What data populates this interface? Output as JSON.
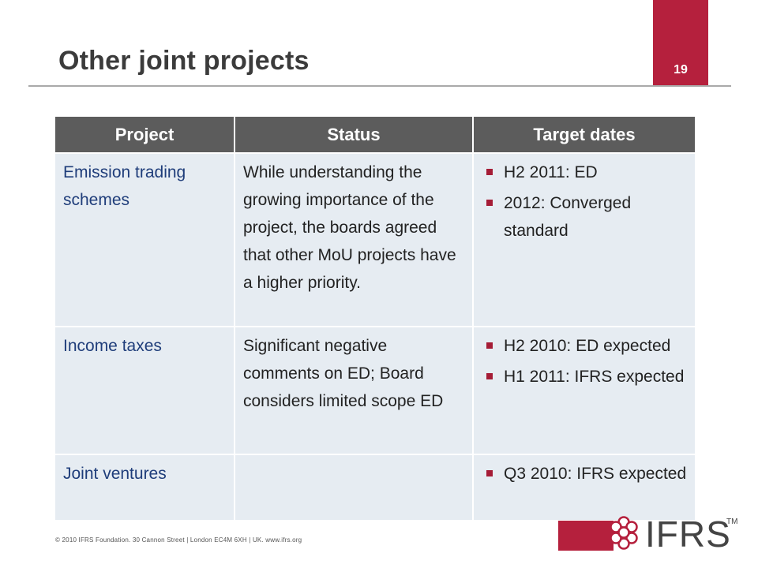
{
  "slide": {
    "title": "Other joint projects",
    "page_number": "19"
  },
  "table": {
    "headers": [
      "Project",
      "Status",
      "Target dates"
    ],
    "rows": [
      {
        "project": "Emission trading schemes",
        "status": "While understanding the growing importance of the project, the boards agreed that other MoU projects have a higher priority.",
        "dates": [
          "H2 2011: ED",
          "2012: Converged standard"
        ]
      },
      {
        "project": "Income taxes",
        "status": "Significant negative comments on ED; Board considers limited scope ED",
        "dates": [
          "H2 2010: ED expected",
          "H1 2011: IFRS expected"
        ]
      },
      {
        "project": "Joint ventures",
        "status": "",
        "dates": [
          "Q3 2010: IFRS expected"
        ]
      }
    ]
  },
  "footer": {
    "text": "© 2010 IFRS Foundation. 30 Cannon Street | London EC4M 6XH | UK. www.ifrs.org"
  },
  "logo": {
    "text": "IFRS",
    "trademark": "TM",
    "brand_color": "#b5203d"
  },
  "colors": {
    "header_bg": "#5c5c5c",
    "cell_bg": "#e6ecf2",
    "project_text": "#1f3d7a",
    "bullet": "#a51c36"
  }
}
